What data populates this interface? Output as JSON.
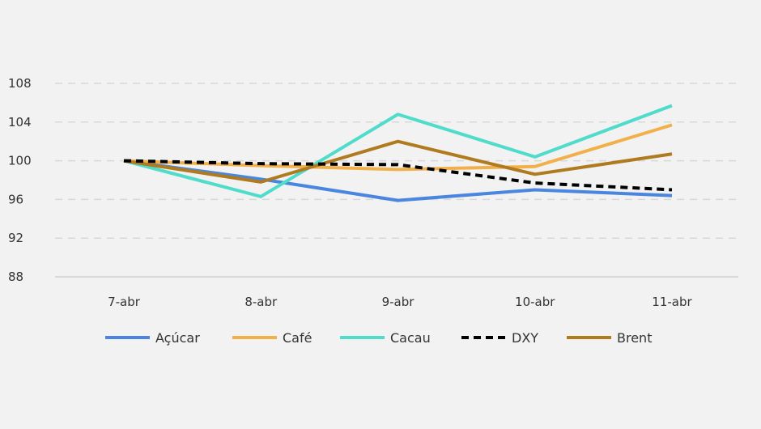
{
  "chart_data": {
    "type": "line",
    "title": "",
    "xlabel": "",
    "ylabel": "",
    "categories": [
      "7-abr",
      "8-abr",
      "9-abr",
      "10-abr",
      "11-abr"
    ],
    "ylim": [
      88,
      108
    ],
    "yticks": [
      88,
      92,
      96,
      100,
      104,
      108
    ],
    "grid": true,
    "legend_position": "bottom",
    "series": [
      {
        "name": "Açúcar",
        "color": "#4a86e0",
        "dashed": false,
        "values": [
          100,
          98.1,
          95.9,
          97.0,
          96.4
        ]
      },
      {
        "name": "Café",
        "color": "#f2b04a",
        "dashed": false,
        "values": [
          100,
          99.5,
          99.1,
          99.4,
          103.7
        ]
      },
      {
        "name": "Cacau",
        "color": "#4fdccb",
        "dashed": false,
        "values": [
          100,
          96.3,
          104.8,
          100.4,
          105.7
        ]
      },
      {
        "name": "DXY",
        "color": "#000000",
        "dashed": true,
        "values": [
          100,
          99.7,
          99.6,
          97.7,
          97.0
        ]
      },
      {
        "name": "Brent",
        "color": "#b07a1e",
        "dashed": false,
        "values": [
          100,
          97.8,
          102.0,
          98.6,
          100.7
        ]
      }
    ]
  }
}
